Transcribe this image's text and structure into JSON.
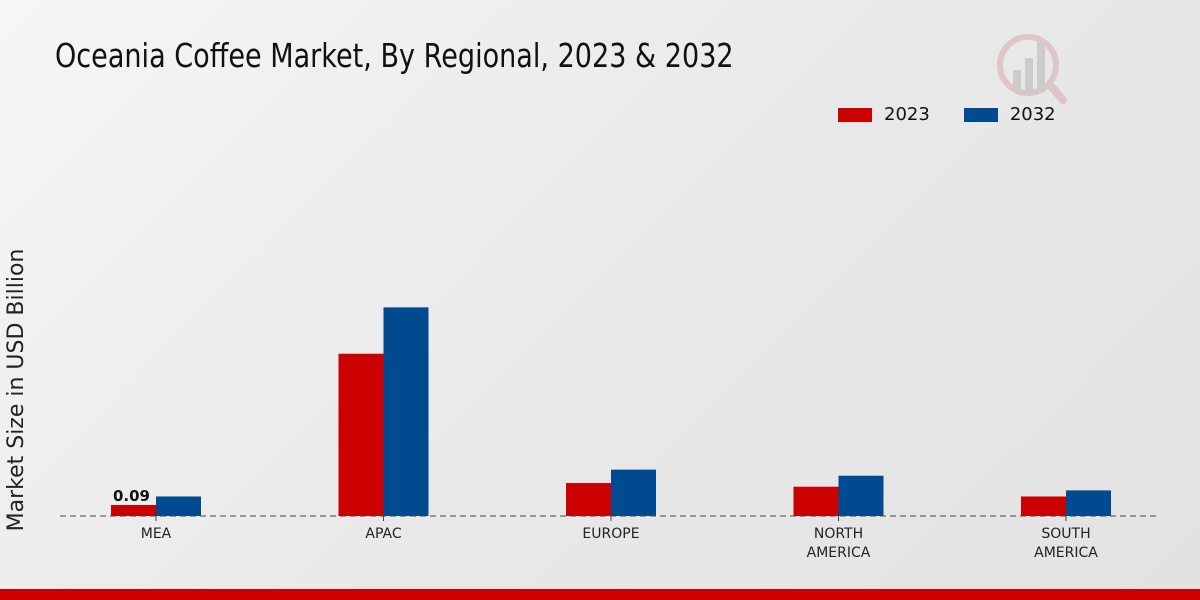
{
  "chart_data": {
    "type": "bar",
    "title": "Oceania Coffee Market, By Regional, 2023 & 2032",
    "xlabel": "",
    "ylabel": "Market Size in USD Billion",
    "categories": [
      "MEA",
      "APAC",
      "EUROPE",
      "NORTH AMERICA",
      "SOUTH AMERICA"
    ],
    "category_lines": [
      [
        "MEA"
      ],
      [
        "APAC"
      ],
      [
        "EUROPE"
      ],
      [
        "NORTH",
        "AMERICA"
      ],
      [
        "SOUTH",
        "AMERICA"
      ]
    ],
    "series": [
      {
        "name": "2023",
        "color": "#cc0000",
        "values": [
          0.09,
          1.33,
          0.27,
          0.24,
          0.16
        ]
      },
      {
        "name": "2032",
        "color": "#004a8f",
        "values": [
          0.16,
          1.71,
          0.38,
          0.33,
          0.21
        ]
      }
    ],
    "data_labels": [
      {
        "series": "2023",
        "category": "MEA",
        "text": "0.09"
      }
    ],
    "ylim": [
      0,
      2.5
    ],
    "grid": false,
    "legend_position": "top-right"
  }
}
